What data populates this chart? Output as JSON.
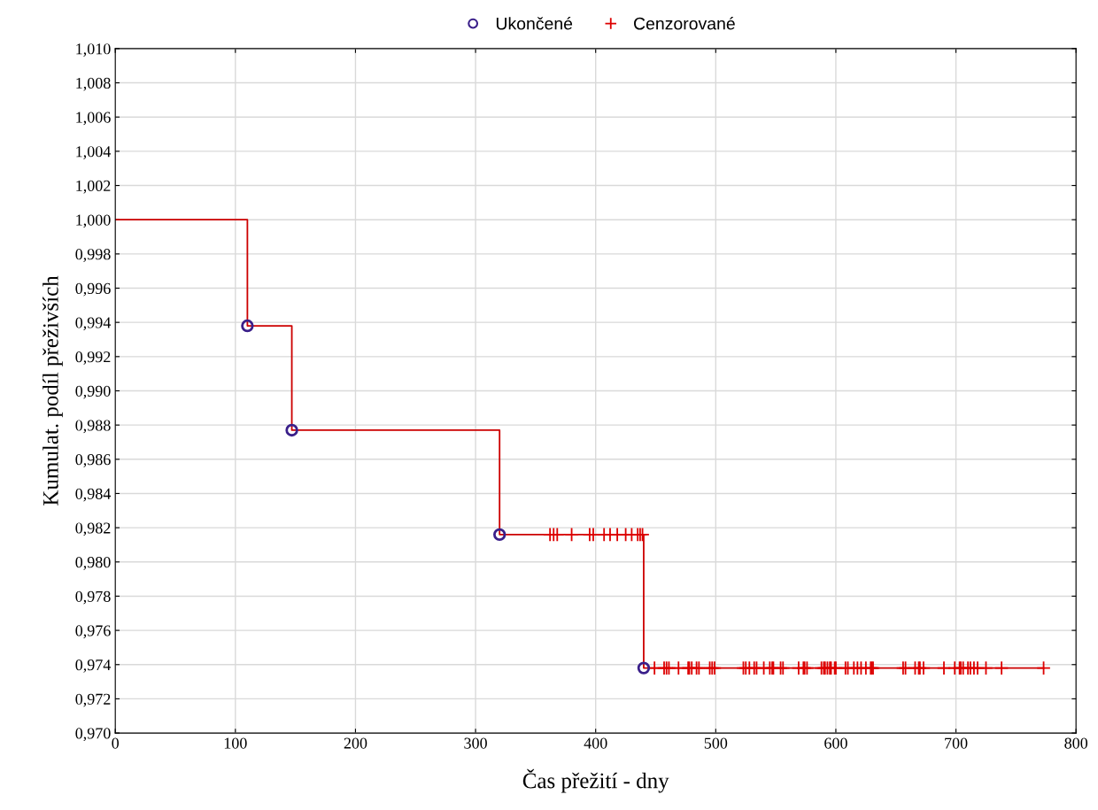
{
  "chart_data": {
    "type": "step",
    "xlabel": "Čas přežití - dny",
    "ylabel": "Kumulat. podíl přeživších",
    "xlim": [
      0,
      800
    ],
    "xticks": [
      0,
      100,
      200,
      300,
      400,
      500,
      600,
      700,
      800
    ],
    "ylim": [
      0.97,
      1.01
    ],
    "yticks": [
      {
        "value": 0.97,
        "label": "0,970"
      },
      {
        "value": 0.972,
        "label": "0,972"
      },
      {
        "value": 0.974,
        "label": "0,974"
      },
      {
        "value": 0.976,
        "label": "0,976"
      },
      {
        "value": 0.978,
        "label": "0,978"
      },
      {
        "value": 0.98,
        "label": "0,980"
      },
      {
        "value": 0.982,
        "label": "0,982"
      },
      {
        "value": 0.984,
        "label": "0,984"
      },
      {
        "value": 0.986,
        "label": "0,986"
      },
      {
        "value": 0.988,
        "label": "0,988"
      },
      {
        "value": 0.99,
        "label": "0,990"
      },
      {
        "value": 0.992,
        "label": "0,992"
      },
      {
        "value": 0.994,
        "label": "0,994"
      },
      {
        "value": 0.996,
        "label": "0,996"
      },
      {
        "value": 0.998,
        "label": "0,998"
      },
      {
        "value": 1.0,
        "label": "1,000"
      },
      {
        "value": 1.002,
        "label": "1,002"
      },
      {
        "value": 1.004,
        "label": "1,004"
      },
      {
        "value": 1.006,
        "label": "1,006"
      },
      {
        "value": 1.008,
        "label": "1,008"
      },
      {
        "value": 1.01,
        "label": "1,010"
      }
    ],
    "grid": true,
    "legend": "top",
    "series": [
      {
        "color": "#cc0000",
        "x": [
          0,
          110,
          147,
          320,
          440,
          773
        ],
        "values": [
          1.0,
          0.9938,
          0.9877,
          0.9816,
          0.9738,
          0.9738
        ]
      },
      {
        "type": "scatter",
        "name": "Ukončené",
        "color": "#3a1f8a",
        "marker": "circle",
        "x": [
          110,
          147,
          320,
          440
        ],
        "values": [
          0.9938,
          0.9877,
          0.9816,
          0.9738
        ]
      },
      {
        "type": "scatter",
        "name": "Cenzorované",
        "color": "#dd0000",
        "marker": "cross",
        "x": [
          362,
          365,
          368,
          380,
          395,
          398,
          407,
          412,
          418,
          425,
          430,
          435,
          437,
          439,
          449,
          457,
          459,
          461,
          469,
          477,
          478,
          480,
          484,
          486,
          495,
          497,
          499,
          523,
          525,
          528,
          532,
          534,
          540,
          545,
          547,
          548,
          554,
          556,
          569,
          573,
          574,
          576,
          588,
          590,
          591,
          593,
          595,
          596,
          599,
          600,
          608,
          610,
          615,
          618,
          621,
          625,
          629,
          630,
          631,
          656,
          658,
          666,
          669,
          670,
          673,
          690,
          699,
          703,
          704,
          706,
          710,
          712,
          715,
          718,
          725,
          738,
          773
        ],
        "values": [
          0.9816,
          0.9816,
          0.9816,
          0.9816,
          0.9816,
          0.9816,
          0.9816,
          0.9816,
          0.9816,
          0.9816,
          0.9816,
          0.9816,
          0.9816,
          0.9816,
          0.9738,
          0.9738,
          0.9738,
          0.9738,
          0.9738,
          0.9738,
          0.9738,
          0.9738,
          0.9738,
          0.9738,
          0.9738,
          0.9738,
          0.9738,
          0.9738,
          0.9738,
          0.9738,
          0.9738,
          0.9738,
          0.9738,
          0.9738,
          0.9738,
          0.9738,
          0.9738,
          0.9738,
          0.9738,
          0.9738,
          0.9738,
          0.9738,
          0.9738,
          0.9738,
          0.9738,
          0.9738,
          0.9738,
          0.9738,
          0.9738,
          0.9738,
          0.9738,
          0.9738,
          0.9738,
          0.9738,
          0.9738,
          0.9738,
          0.9738,
          0.9738,
          0.9738,
          0.9738,
          0.9738,
          0.9738,
          0.9738,
          0.9738,
          0.9738,
          0.9738,
          0.9738,
          0.9738,
          0.9738,
          0.9738,
          0.9738,
          0.9738,
          0.9738,
          0.9738,
          0.9738,
          0.9738,
          0.9738
        ]
      }
    ]
  }
}
